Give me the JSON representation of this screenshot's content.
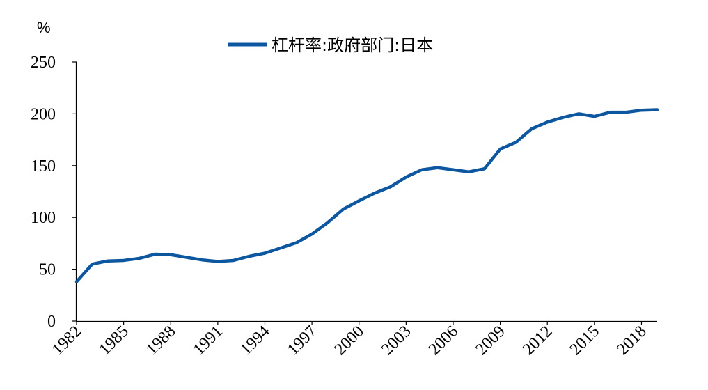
{
  "chart_data": {
    "type": "line",
    "y_unit": "%",
    "legend_position": "top-center",
    "grid": false,
    "xlim": [
      1982,
      2019
    ],
    "ylim": [
      0,
      250
    ],
    "y_ticks": [
      0,
      50,
      100,
      150,
      200,
      250
    ],
    "x_ticks": [
      1982,
      1985,
      1988,
      1991,
      1994,
      1997,
      2000,
      2003,
      2006,
      2009,
      2012,
      2015,
      2018
    ],
    "series": [
      {
        "name": "杠杆率:政府部门:日本",
        "color": "#0d56a0",
        "x": [
          1982,
          1983,
          1984,
          1985,
          1986,
          1987,
          1988,
          1989,
          1990,
          1991,
          1992,
          1993,
          1994,
          1995,
          1996,
          1997,
          1998,
          1999,
          2000,
          2001,
          2002,
          2003,
          2004,
          2005,
          2006,
          2007,
          2008,
          2009,
          2010,
          2011,
          2012,
          2013,
          2014,
          2015,
          2016,
          2017,
          2018,
          2019
        ],
        "values": [
          38,
          55,
          58,
          58.5,
          60.5,
          64.5,
          64,
          61.5,
          59,
          57.5,
          58.5,
          62.5,
          65.5,
          70.5,
          75.5,
          84,
          95,
          108,
          116,
          123.5,
          129.5,
          139,
          146,
          148,
          146,
          144,
          147,
          166,
          172.5,
          185.5,
          192,
          196.5,
          200,
          197.5,
          201.5,
          201.5,
          203.5,
          204
        ]
      }
    ]
  }
}
